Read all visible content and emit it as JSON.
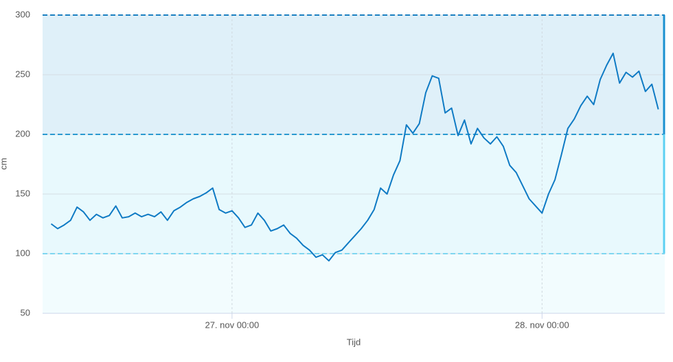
{
  "chart_data": {
    "type": "line",
    "y_label": "cm",
    "x_label": "Tijd",
    "x": [
      "26. nov 10:00",
      "26. nov 10:30",
      "26. nov 11:00",
      "26. nov 11:30",
      "26. nov 12:00",
      "26. nov 12:30",
      "26. nov 13:00",
      "26. nov 13:30",
      "26. nov 14:00",
      "26. nov 14:30",
      "26. nov 15:00",
      "26. nov 15:30",
      "26. nov 16:00",
      "26. nov 16:30",
      "26. nov 17:00",
      "26. nov 17:30",
      "26. nov 18:00",
      "26. nov 18:30",
      "26. nov 19:00",
      "26. nov 19:30",
      "26. nov 20:00",
      "26. nov 20:30",
      "26. nov 21:00",
      "26. nov 21:30",
      "26. nov 22:00",
      "26. nov 22:30",
      "26. nov 23:00",
      "26. nov 23:30",
      "27. nov 00:00",
      "27. nov 00:30",
      "27. nov 01:00",
      "27. nov 01:30",
      "27. nov 02:00",
      "27. nov 02:30",
      "27. nov 03:00",
      "27. nov 03:30",
      "27. nov 04:00",
      "27. nov 04:30",
      "27. nov 05:00",
      "27. nov 05:30",
      "27. nov 06:00",
      "27. nov 06:30",
      "27. nov 07:00",
      "27. nov 07:30",
      "27. nov 08:00",
      "27. nov 08:30",
      "27. nov 09:00",
      "27. nov 09:30",
      "27. nov 10:00",
      "27. nov 10:30",
      "27. nov 11:00",
      "27. nov 11:30",
      "27. nov 12:00",
      "27. nov 12:30",
      "27. nov 13:00",
      "27. nov 13:30",
      "27. nov 14:00",
      "27. nov 14:30",
      "27. nov 15:00",
      "27. nov 15:30",
      "27. nov 16:00",
      "27. nov 16:30",
      "27. nov 17:00",
      "27. nov 17:30",
      "27. nov 18:00",
      "27. nov 18:30",
      "27. nov 19:00",
      "27. nov 19:30",
      "27. nov 20:00",
      "27. nov 20:30",
      "27. nov 21:00",
      "27. nov 21:30",
      "27. nov 22:00",
      "27. nov 22:30",
      "27. nov 23:00",
      "27. nov 23:30",
      "28. nov 00:00",
      "28. nov 00:30",
      "28. nov 01:00",
      "28. nov 01:30",
      "28. nov 02:00",
      "28. nov 02:30",
      "28. nov 03:00",
      "28. nov 03:30",
      "28. nov 04:00",
      "28. nov 04:30",
      "28. nov 05:00",
      "28. nov 05:30",
      "28. nov 06:00",
      "28. nov 06:30",
      "28. nov 07:00",
      "28. nov 07:30",
      "28. nov 08:00",
      "28. nov 08:30",
      "28. nov 09:00"
    ],
    "series": [
      {
        "color": "#0e7ac4",
        "values": [
          125,
          121,
          124,
          128,
          139,
          135,
          128,
          133,
          130,
          132,
          140,
          130,
          131,
          134,
          131,
          133,
          131,
          135,
          128,
          136,
          139,
          143,
          146,
          148,
          151,
          155,
          137,
          134,
          136,
          130,
          122,
          124,
          134,
          128,
          119,
          121,
          124,
          117,
          113,
          107,
          103,
          97,
          99,
          94,
          101,
          103,
          109,
          115,
          121,
          128,
          137,
          155,
          150,
          166,
          178,
          208,
          201,
          209,
          235,
          249,
          247,
          218,
          222,
          199,
          212,
          192,
          205,
          197,
          192,
          198,
          190,
          174,
          168,
          157,
          146,
          140,
          134,
          150,
          162,
          183,
          205,
          213,
          224,
          232,
          225,
          246,
          258,
          268,
          243,
          252,
          248,
          253,
          236,
          242,
          221
        ]
      }
    ],
    "xlim": [
      "26. nov 09:20",
      "28. nov 09:30"
    ],
    "xticks": [
      "27. nov 00:00",
      "28. nov 00:00"
    ],
    "ylim": [
      50,
      300
    ],
    "yticks": [
      50,
      100,
      150,
      200,
      250,
      300
    ],
    "grid": true,
    "plot_bands": [
      {
        "from": 200,
        "to": 300,
        "color": "#dff0f9",
        "line": "#1a7fc0",
        "edge": "#1a8fd0"
      },
      {
        "from": 100,
        "to": 200,
        "color": "#e8f9fd",
        "line": "#2a9ad0",
        "edge": "#5cd0f2"
      },
      {
        "from": 50,
        "to": 100,
        "color": "#f2fcfe",
        "line": "#7fd6f0"
      }
    ]
  }
}
